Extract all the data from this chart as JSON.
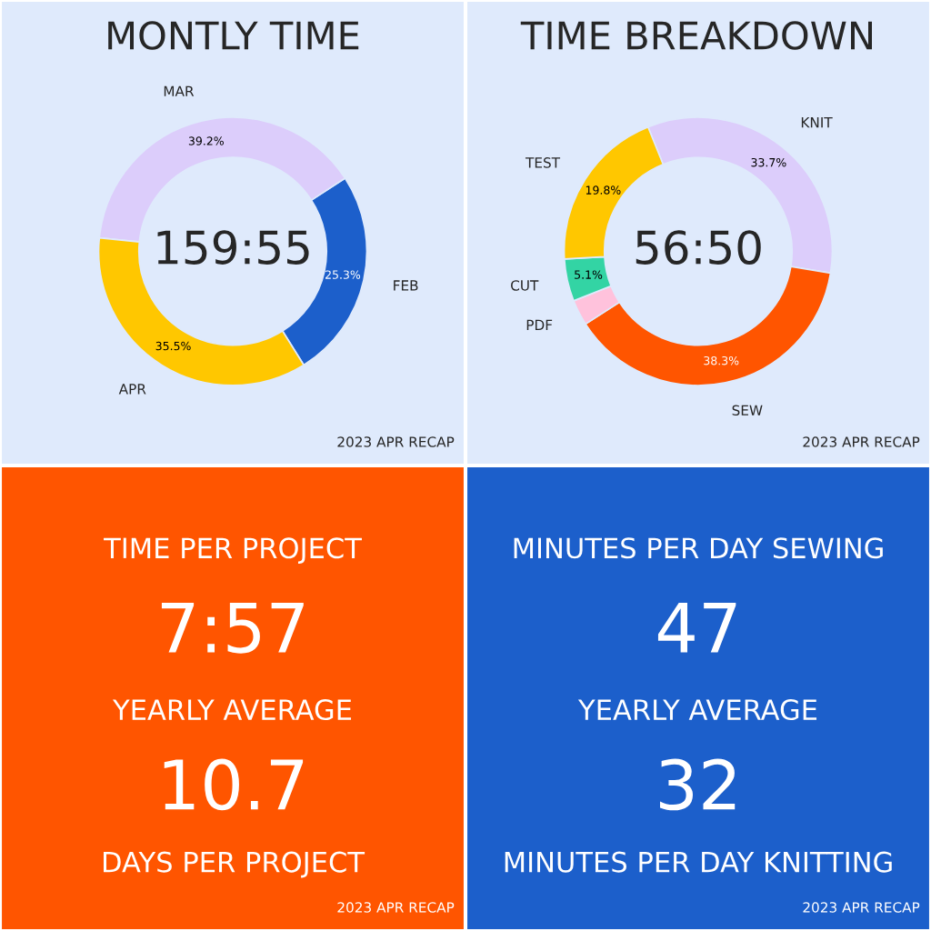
{
  "chart_data": [
    {
      "type": "donut",
      "title": "MONTLY TIME",
      "categories": [
        "FEB",
        "MAR",
        "APR"
      ],
      "values": [
        25.3,
        39.2,
        35.5
      ],
      "colors": [
        "#1c5fcb",
        "#dccdfb",
        "#ffc700"
      ],
      "value_labels": [
        "25.3%",
        "39.2%",
        "35.5%"
      ],
      "annotations": [
        "159:55",
        "2023 APR RECAP"
      ]
    },
    {
      "type": "donut",
      "title": "TIME BREAKDOWN",
      "categories": [
        "KNIT",
        "SEW",
        "PDF",
        "CUT",
        "TEST"
      ],
      "values": [
        33.7,
        38.3,
        3.1,
        5.1,
        19.8
      ],
      "colors": [
        "#dccdfb",
        "#ff5500",
        "#ffc2dc",
        "#33d4a4",
        "#ffc700"
      ],
      "value_labels": [
        "33.7%",
        "38.3%",
        null,
        "5.1%",
        "19.8%"
      ],
      "annotations": [
        "56:50",
        "2023 APR RECAP"
      ]
    },
    {
      "type": "other",
      "title": "TIME PER PROJECT",
      "annotations": [
        "7:57",
        "YEARLY AVERAGE",
        "10.7",
        "DAYS PER PROJECT",
        "2023 APR RECAP"
      ]
    },
    {
      "type": "other",
      "title": "MINUTES PER DAY SEWING",
      "annotations": [
        "47",
        "YEARLY AVERAGE",
        "32",
        "MINUTES PER DAY KNITTING",
        "2023 APR RECAP"
      ]
    }
  ]
}
